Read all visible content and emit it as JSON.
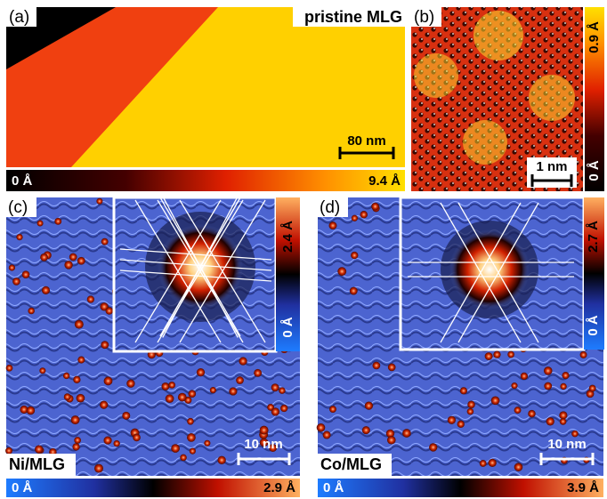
{
  "panels": [
    {
      "label": "(a)",
      "title": "pristine MLG",
      "scale_bar": "80 nm",
      "colorbar": {
        "min": "0 Å",
        "max": "9.4 Å"
      }
    },
    {
      "label": "(b)",
      "scale_bar": "1 nm",
      "colorbar": {
        "min": "0 Å",
        "max": "0.9 Å"
      }
    },
    {
      "label": "(c)",
      "title": "Ni/MLG",
      "scale_bar": "10 nm",
      "colorbar": {
        "min": "0 Å",
        "max": "2.9 Å"
      },
      "inset_colorbar": {
        "min": "0 Å",
        "max": "2.4 Å"
      }
    },
    {
      "label": "(d)",
      "title": "Co/MLG",
      "scale_bar": "10 nm",
      "colorbar": {
        "min": "0 Å",
        "max": "3.9 Å"
      },
      "inset_colorbar": {
        "min": "0 Å",
        "max": "2.7 Å"
      }
    }
  ]
}
